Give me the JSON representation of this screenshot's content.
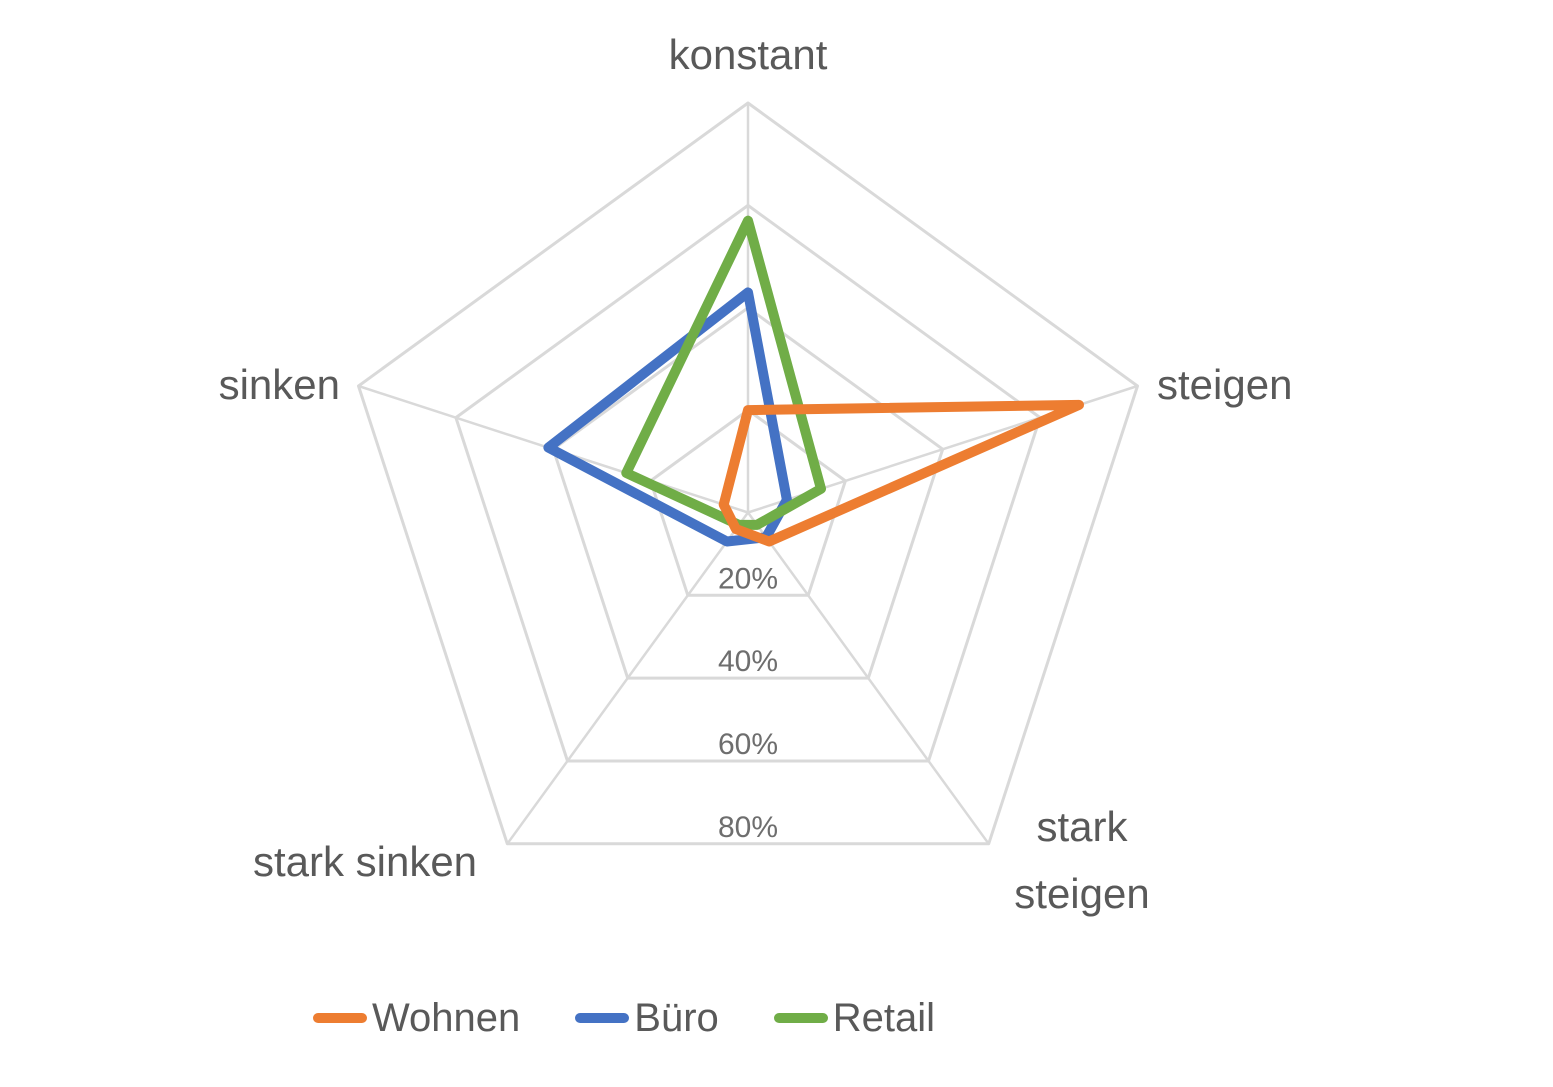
{
  "chart_data": {
    "type": "radar",
    "categories": [
      "konstant",
      "steigen",
      "stark steigen",
      "stark sinken",
      "sinken"
    ],
    "categories_display_lines": [
      [
        "konstant"
      ],
      [
        "steigen"
      ],
      [
        "stark",
        "steigen"
      ],
      [
        "stark sinken"
      ],
      [
        "sinken"
      ]
    ],
    "series": [
      {
        "name": "Wohnen",
        "color": "#ED7D31",
        "values": [
          20,
          68,
          7,
          4,
          5
        ]
      },
      {
        "name": "Büro",
        "color": "#4472C4",
        "values": [
          43,
          8,
          6,
          7,
          41
        ]
      },
      {
        "name": "Retail",
        "color": "#70AD47",
        "values": [
          57,
          15,
          3,
          3,
          25
        ]
      }
    ],
    "axis": {
      "unit": "%",
      "min": 0,
      "max": 80,
      "tick_interval": 20,
      "tick_labels": [
        "20%",
        "40%",
        "60%",
        "80%"
      ],
      "gridline_color": "#D9D9D9",
      "tick_label_color": "#6e6e6e",
      "category_label_color": "#595959"
    },
    "title": "",
    "legend_position": "bottom",
    "grid": true
  },
  "legend": {
    "items": [
      {
        "label": "Wohnen",
        "color": "#ED7D31"
      },
      {
        "label": "Büro",
        "color": "#4472C4"
      },
      {
        "label": "Retail",
        "color": "#70AD47"
      }
    ]
  }
}
